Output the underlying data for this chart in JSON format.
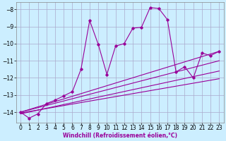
{
  "xlabel": "Windchill (Refroidissement éolien,°C)",
  "background_color": "#cceeff",
  "grid_color": "#aaaacc",
  "line_color": "#990099",
  "xlim": [
    -0.5,
    23.5
  ],
  "ylim": [
    -14.6,
    -7.6
  ],
  "yticks": [
    -14,
    -13,
    -12,
    -11,
    -10,
    -9,
    -8
  ],
  "xticks": [
    0,
    1,
    2,
    3,
    4,
    5,
    6,
    7,
    8,
    9,
    10,
    11,
    12,
    13,
    14,
    15,
    16,
    17,
    18,
    19,
    20,
    21,
    22,
    23
  ],
  "series": [
    [
      0,
      -14.0
    ],
    [
      1,
      -14.35
    ],
    [
      2,
      -14.1
    ],
    [
      3,
      -13.5
    ],
    [
      4,
      -13.3
    ],
    [
      5,
      -13.05
    ],
    [
      6,
      -12.8
    ],
    [
      7,
      -11.5
    ],
    [
      8,
      -8.65
    ],
    [
      9,
      -10.05
    ],
    [
      10,
      -11.8
    ],
    [
      11,
      -10.15
    ],
    [
      12,
      -10.0
    ],
    [
      13,
      -9.1
    ],
    [
      14,
      -9.05
    ],
    [
      15,
      -7.9
    ],
    [
      16,
      -7.95
    ],
    [
      17,
      -8.6
    ],
    [
      18,
      -11.65
    ],
    [
      19,
      -11.35
    ],
    [
      20,
      -12.0
    ],
    [
      21,
      -10.55
    ],
    [
      22,
      -10.7
    ],
    [
      23,
      -10.45
    ]
  ],
  "linear_series": [
    [
      [
        0,
        -14.0
      ],
      [
        23,
        -10.45
      ]
    ],
    [
      [
        0,
        -14.0
      ],
      [
        23,
        -11.0
      ]
    ],
    [
      [
        0,
        -14.1
      ],
      [
        23,
        -11.6
      ]
    ],
    [
      [
        0,
        -14.05
      ],
      [
        23,
        -12.05
      ]
    ]
  ],
  "tick_fontsize": 5.5,
  "xlabel_fontsize": 5.5
}
